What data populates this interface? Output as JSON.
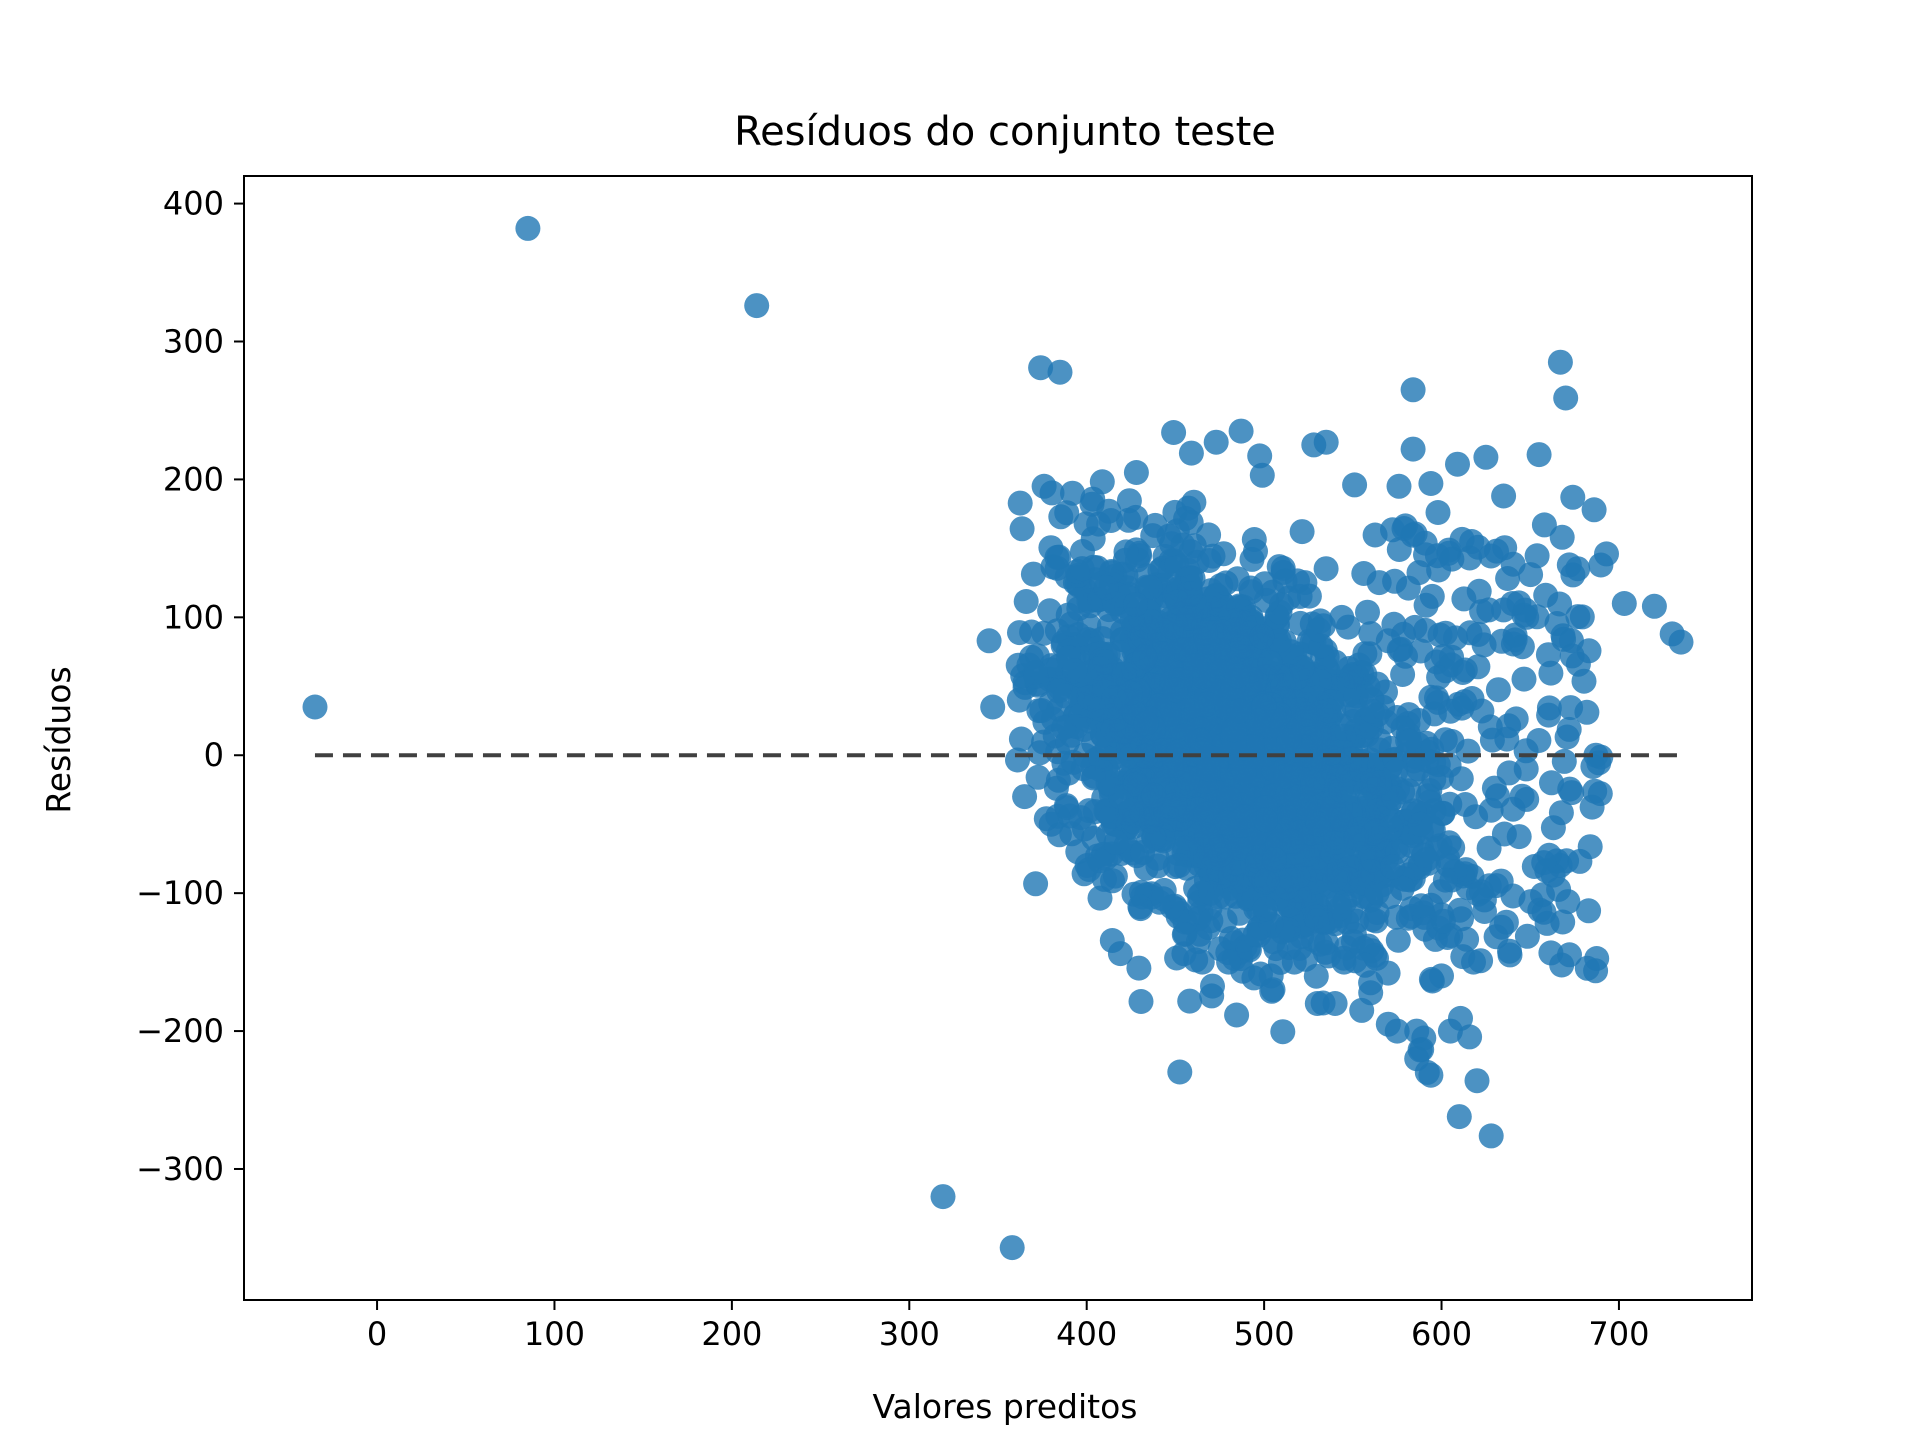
{
  "colors": {
    "points": "#1f77b4",
    "reference_line": "#404040",
    "axes": "#000000",
    "background": "#ffffff"
  },
  "chart_data": {
    "type": "scatter",
    "title": "Resíduos do conjunto teste",
    "xlabel": "Valores preditos",
    "ylabel": "Resíduos",
    "xlim": [
      -75,
      775
    ],
    "ylim": [
      -395,
      420
    ],
    "x_ticks": [
      0,
      100,
      200,
      300,
      400,
      500,
      600,
      700
    ],
    "x_tick_labels": [
      "0",
      "100",
      "200",
      "300",
      "400",
      "500",
      "600",
      "700"
    ],
    "y_ticks": [
      -300,
      -200,
      -100,
      0,
      100,
      200,
      300,
      400
    ],
    "y_tick_labels": [
      "−300",
      "−200",
      "−100",
      "0",
      "100",
      "200",
      "300",
      "400"
    ],
    "grid": false,
    "legend": "none",
    "reference_line": {
      "y": 0,
      "x_from": -35,
      "x_to": 735,
      "style": "dashed"
    },
    "outliers": {
      "x": [
        -35,
        85,
        214,
        374,
        319,
        358,
        584,
        667,
        670,
        345,
        347,
        703,
        730,
        735,
        720
      ],
      "y": [
        35,
        382,
        326,
        281,
        -320,
        -357,
        265,
        285,
        259,
        83,
        35,
        110,
        88,
        82,
        108
      ]
    },
    "cluster": {
      "description_x_range": [
        355,
        700
      ],
      "description_y_range": [
        -280,
        240
      ],
      "x": [
        376,
        392,
        403,
        428,
        449,
        473,
        487,
        499,
        528,
        535,
        551,
        576,
        594,
        609,
        625,
        635,
        655,
        674,
        686,
        693,
        584,
        598,
        617,
        631,
        668,
        672,
        658,
        648,
        640,
        624,
        612,
        596,
        582,
        565,
        552,
        540,
        530,
        517,
        504,
        491,
        478,
        465,
        452,
        438,
        425,
        412,
        399,
        387,
        371,
        362,
        365,
        380,
        395,
        410,
        430,
        455,
        480,
        505,
        530,
        555,
        575,
        590,
        605,
        618,
        600,
        592,
        586,
        570,
        560,
        545,
        520,
        495,
        470,
        448,
        470,
        540,
        586,
        594,
        610,
        620,
        628,
        612,
        622,
        648,
        662,
        678,
        687
      ],
      "y": [
        195,
        190,
        182,
        205,
        234,
        227,
        235,
        203,
        225,
        227,
        196,
        195,
        197,
        211,
        216,
        188,
        218,
        187,
        178,
        146,
        222,
        176,
        155,
        148,
        158,
        138,
        167,
        100,
        110,
        80,
        60,
        30,
        10,
        -20,
        -60,
        -90,
        -120,
        -150,
        -160,
        -140,
        -120,
        -100,
        -80,
        -60,
        -40,
        -20,
        0,
        20,
        60,
        40,
        -30,
        -50,
        -70,
        -90,
        -110,
        -130,
        -150,
        -170,
        -180,
        -185,
        -200,
        -205,
        -200,
        -150,
        -160,
        -230,
        -220,
        -195,
        -165,
        -150,
        -140,
        -130,
        -120,
        -110,
        -100,
        -180,
        -200,
        -232,
        -262,
        -236,
        -276,
        -146,
        -149,
        -32,
        -20,
        -77,
        0
      ]
    }
  }
}
